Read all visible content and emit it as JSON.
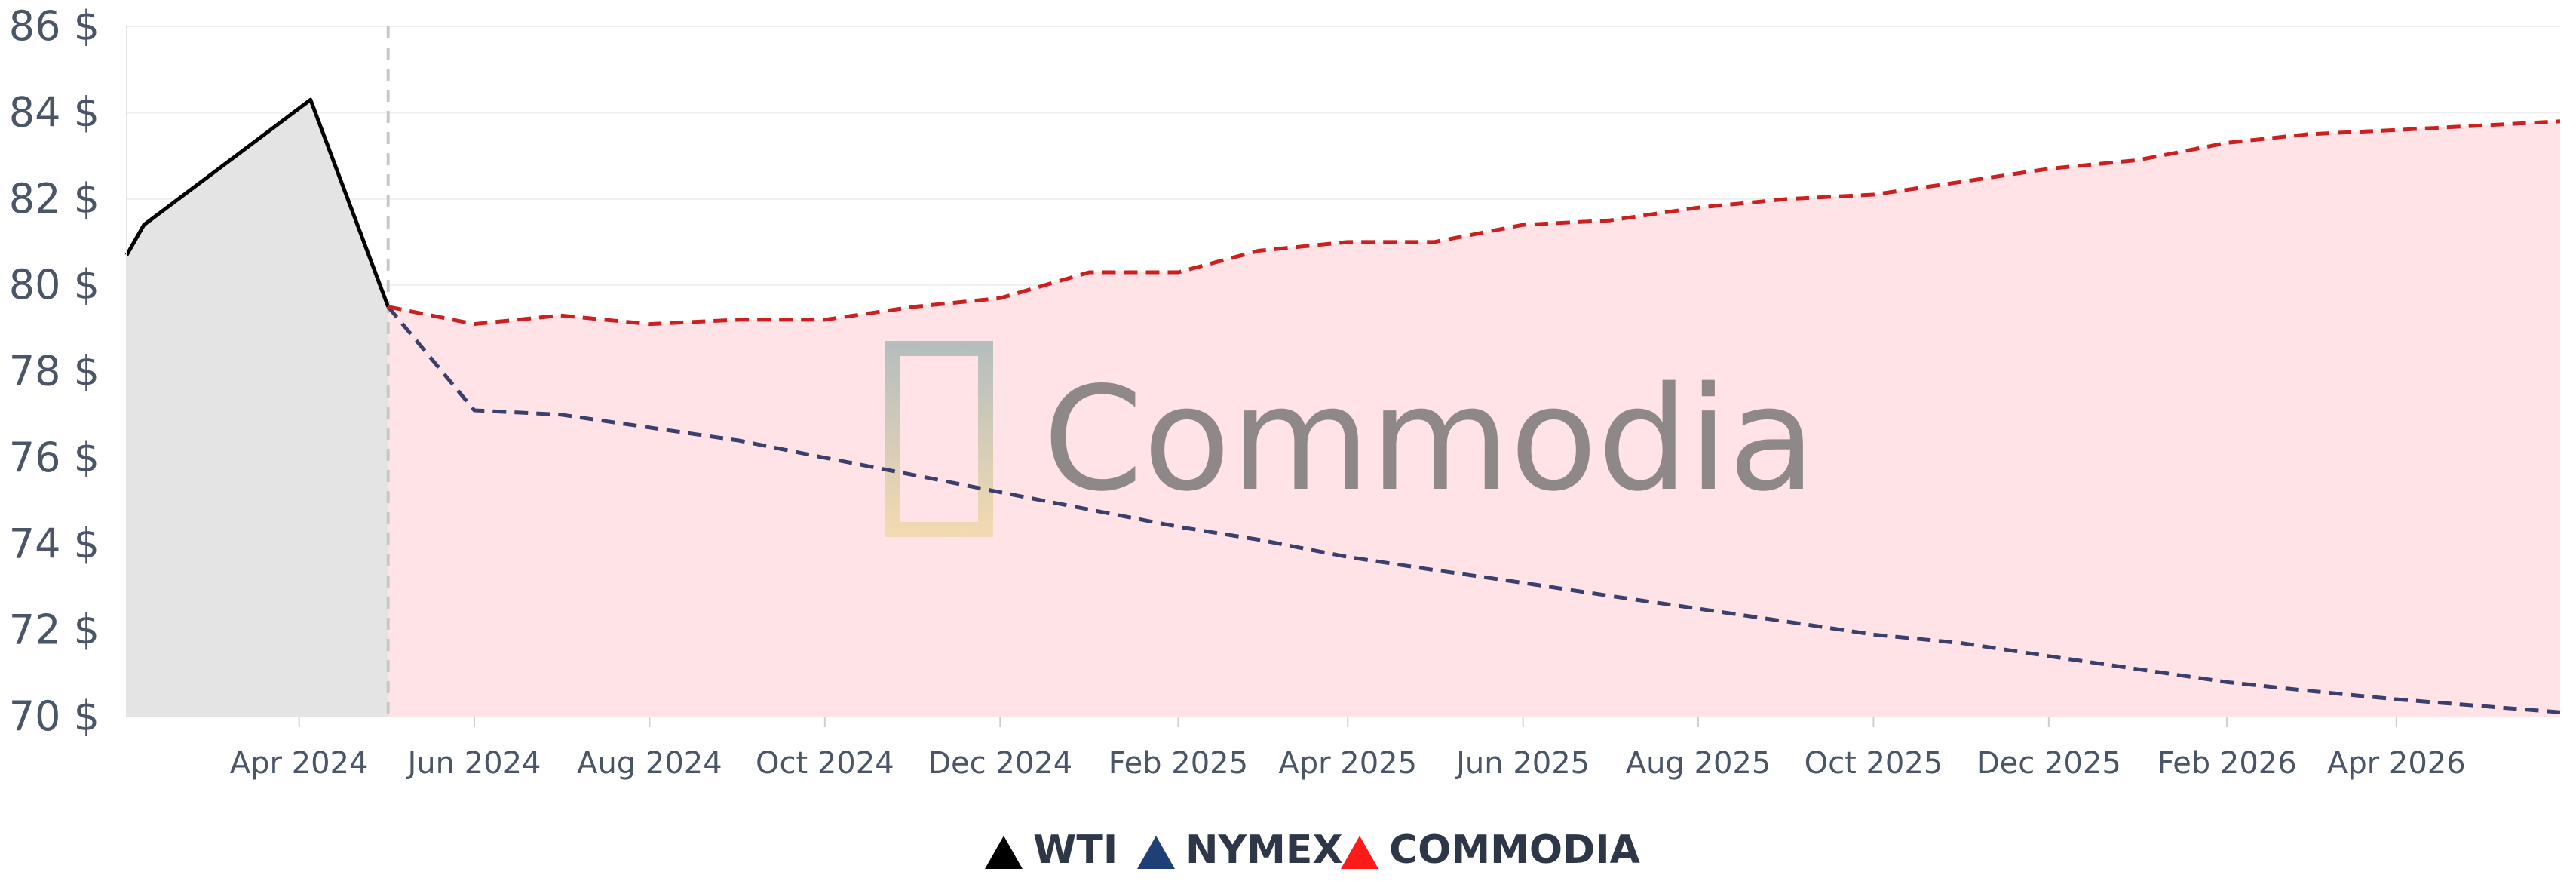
{
  "chart_data": {
    "type": "line",
    "yaxis": {
      "min": 70,
      "max": 86,
      "step": 2,
      "suffix": " $"
    },
    "x_start": "2024-02-01",
    "x_end": "2026-05-28",
    "x_ticks": [
      {
        "date": "2024-04-01",
        "label": "Apr 2024"
      },
      {
        "date": "2024-06-01",
        "label": "Jun 2024"
      },
      {
        "date": "2024-08-01",
        "label": "Aug 2024"
      },
      {
        "date": "2024-10-01",
        "label": "Oct 2024"
      },
      {
        "date": "2024-12-01",
        "label": "Dec 2024"
      },
      {
        "date": "2025-02-01",
        "label": "Feb 2025"
      },
      {
        "date": "2025-04-01",
        "label": "Apr 2025"
      },
      {
        "date": "2025-06-01",
        "label": "Jun 2025"
      },
      {
        "date": "2025-08-01",
        "label": "Aug 2025"
      },
      {
        "date": "2025-10-01",
        "label": "Oct 2025"
      },
      {
        "date": "2025-12-01",
        "label": "Dec 2025"
      },
      {
        "date": "2026-02-01",
        "label": "Feb 2026"
      },
      {
        "date": "2026-04-01",
        "label": "Apr 2026"
      }
    ],
    "divider_date": "2024-05-02",
    "series": [
      {
        "name": "WTI",
        "color": "#000000",
        "fill": "#e4e4e4",
        "dashed": false,
        "points": [
          [
            "2024-02-01",
            80.7
          ],
          [
            "2024-02-07",
            81.4
          ],
          [
            "2024-04-05",
            84.3
          ],
          [
            "2024-05-02",
            79.5
          ]
        ]
      },
      {
        "name": "NYMEX",
        "color": "#3a3f6b",
        "fill": "#e8d5dc",
        "dashed": true,
        "points": [
          [
            "2024-05-02",
            79.5
          ],
          [
            "2024-06-01",
            77.1
          ],
          [
            "2024-07-01",
            77.0
          ],
          [
            "2024-08-01",
            76.7
          ],
          [
            "2024-09-01",
            76.4
          ],
          [
            "2024-10-01",
            76.0
          ],
          [
            "2024-11-01",
            75.6
          ],
          [
            "2024-12-01",
            75.2
          ],
          [
            "2025-01-01",
            74.8
          ],
          [
            "2025-02-01",
            74.4
          ],
          [
            "2025-03-01",
            74.1
          ],
          [
            "2025-04-01",
            73.7
          ],
          [
            "2025-05-01",
            73.4
          ],
          [
            "2025-06-01",
            73.1
          ],
          [
            "2025-07-01",
            72.8
          ],
          [
            "2025-08-01",
            72.5
          ],
          [
            "2025-09-01",
            72.2
          ],
          [
            "2025-10-01",
            71.9
          ],
          [
            "2025-11-01",
            71.7
          ],
          [
            "2025-12-01",
            71.4
          ],
          [
            "2026-01-01",
            71.1
          ],
          [
            "2026-02-01",
            70.8
          ],
          [
            "2026-03-01",
            70.6
          ],
          [
            "2026-04-01",
            70.4
          ],
          [
            "2026-05-28",
            70.1
          ]
        ]
      },
      {
        "name": "COMMODIA",
        "color": "#cc1f1f",
        "fill": "#ffe3e6",
        "dashed": true,
        "points": [
          [
            "2024-05-02",
            79.5
          ],
          [
            "2024-06-01",
            79.1
          ],
          [
            "2024-07-01",
            79.3
          ],
          [
            "2024-08-01",
            79.1
          ],
          [
            "2024-09-01",
            79.2
          ],
          [
            "2024-10-01",
            79.2
          ],
          [
            "2024-11-01",
            79.5
          ],
          [
            "2024-12-01",
            79.7
          ],
          [
            "2025-01-01",
            80.3
          ],
          [
            "2025-02-01",
            80.3
          ],
          [
            "2025-03-01",
            80.8
          ],
          [
            "2025-04-01",
            81.0
          ],
          [
            "2025-05-01",
            81.0
          ],
          [
            "2025-06-01",
            81.4
          ],
          [
            "2025-07-01",
            81.5
          ],
          [
            "2025-08-01",
            81.8
          ],
          [
            "2025-09-01",
            82.0
          ],
          [
            "2025-10-01",
            82.1
          ],
          [
            "2025-11-01",
            82.4
          ],
          [
            "2025-12-01",
            82.7
          ],
          [
            "2026-01-01",
            82.9
          ],
          [
            "2026-02-01",
            83.3
          ],
          [
            "2026-03-01",
            83.5
          ],
          [
            "2026-04-01",
            83.6
          ],
          [
            "2026-05-28",
            83.8
          ]
        ]
      }
    ],
    "legend": {
      "placement": "bottom-center"
    },
    "watermark": "Commodia"
  }
}
